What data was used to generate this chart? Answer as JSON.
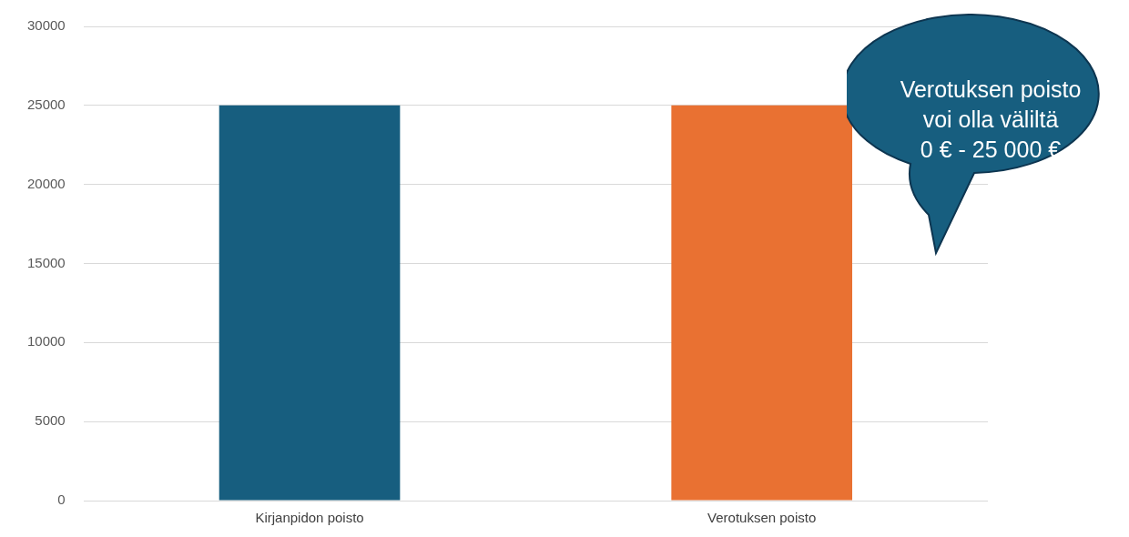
{
  "chart_data": {
    "type": "bar",
    "categories": [
      "Kirjanpidon poisto",
      "Verotuksen poisto"
    ],
    "values": [
      25000,
      25000
    ],
    "colors": [
      "#175e7f",
      "#e97132"
    ],
    "ylim": [
      0,
      30000
    ],
    "yticks": [
      0,
      5000,
      10000,
      15000,
      20000,
      25000,
      30000
    ],
    "grid": "y",
    "legend": false,
    "annotations": [
      "Verotuksen poisto\nvoi olla väliltä\n0 € - 25 000 €"
    ]
  }
}
